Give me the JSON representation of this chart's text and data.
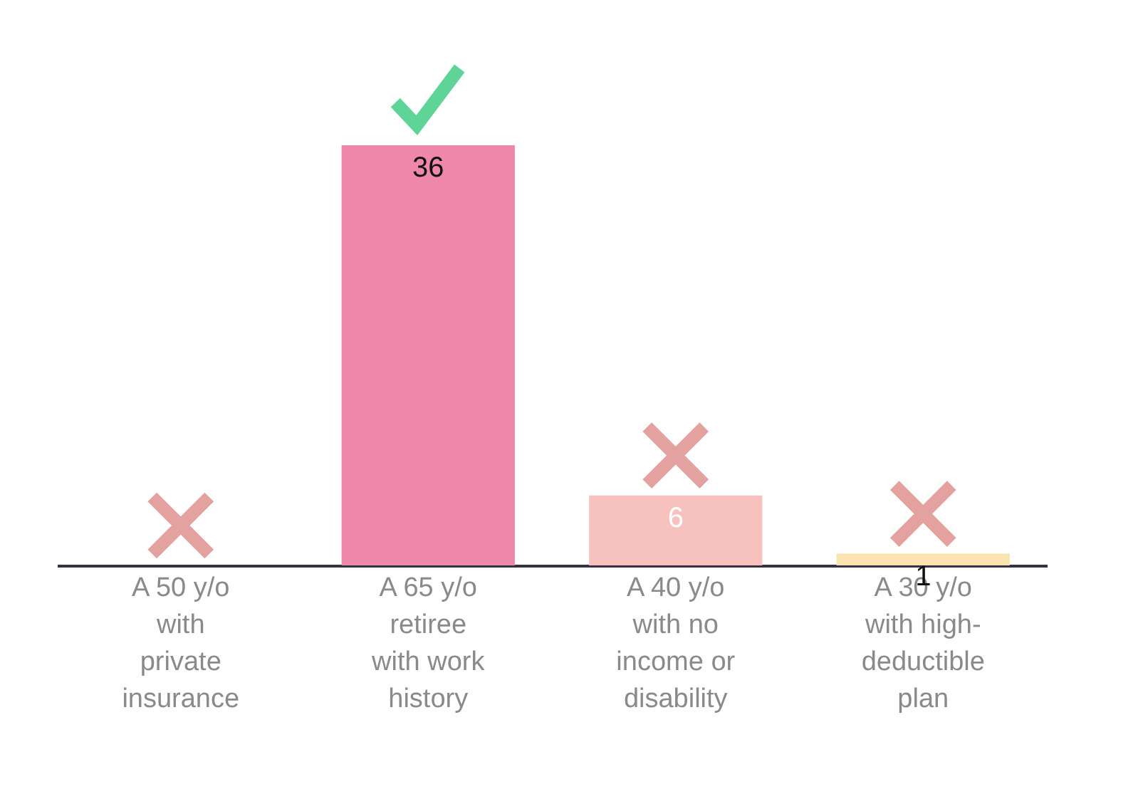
{
  "chart_data": {
    "type": "bar",
    "categories": [
      "A 50 y/o with private insurance",
      "A 65 y/o retiree with work history",
      "A 40 y/o with no income or disability",
      "A 30 y/o with high-deductible plan"
    ],
    "values": [
      0,
      36,
      6,
      1
    ],
    "colors": [
      "#ef87aa",
      "#ef87aa",
      "#f7c2bd",
      "#fbe3b0"
    ],
    "value_labels": [
      null,
      "36",
      "6",
      "1"
    ]
  }
}
